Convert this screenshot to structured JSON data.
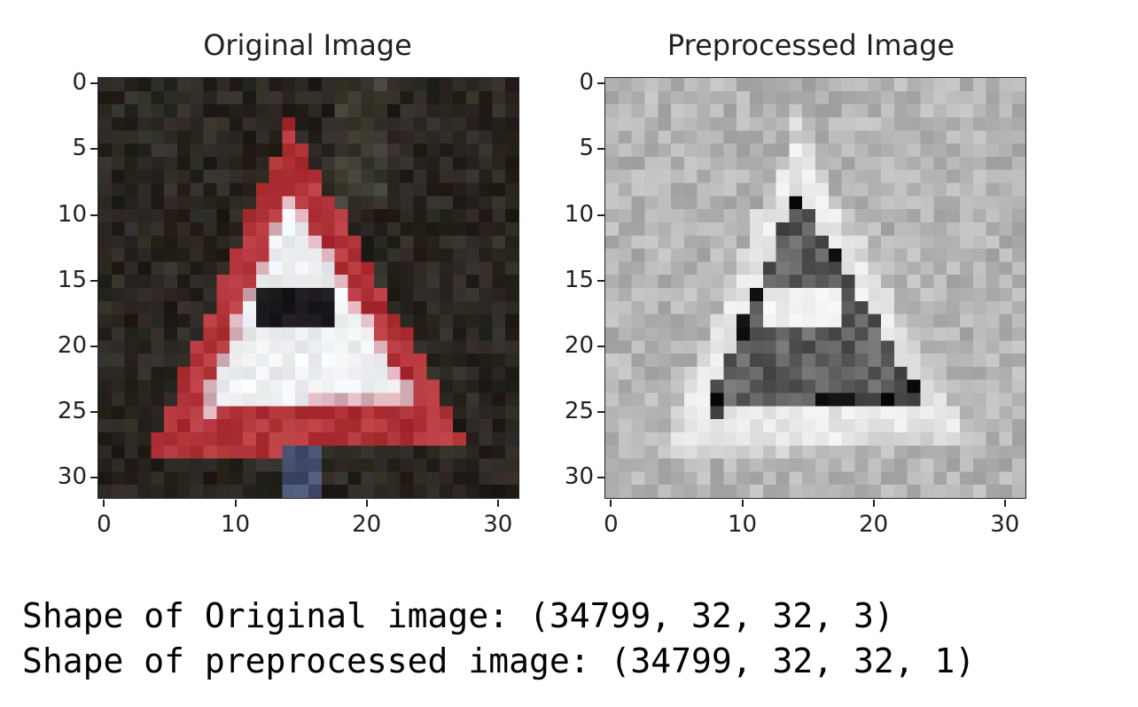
{
  "chart_data": [
    {
      "type": "heatmap",
      "title": "Original Image",
      "image_shape": [
        32,
        32,
        3
      ],
      "x_ticks": [
        0,
        10,
        20,
        30
      ],
      "y_ticks": [
        0,
        5,
        10,
        15,
        20,
        25,
        30
      ],
      "xlim": [
        -0.5,
        31.5
      ],
      "ylim": [
        31.5,
        -0.5
      ],
      "content": "warning-triangle-road-sign",
      "colors": {
        "background": "#2a2620",
        "border_red": "#b2353a",
        "inner_white": "#eef0f2",
        "symbol_dark": "#1c1a1e"
      }
    },
    {
      "type": "heatmap",
      "title": "Preprocessed Image",
      "image_shape": [
        32,
        32,
        1
      ],
      "x_ticks": [
        0,
        10,
        20,
        30
      ],
      "y_ticks": [
        0,
        5,
        10,
        15,
        20,
        25,
        30
      ],
      "xlim": [
        -0.5,
        31.5
      ],
      "ylim": [
        31.5,
        -0.5
      ],
      "colormap": "gray",
      "content": "warning-triangle-road-sign",
      "colors": {
        "background": "#b4b4b4",
        "outline_light": "#f2f2f2",
        "interior_dark": "#555555",
        "edge_black": "#0a0a0a"
      }
    }
  ],
  "output": {
    "line1": "Shape of Original image: (34799, 32, 32, 3)",
    "line2": "Shape of preprocessed image: (34799, 32, 32, 1)"
  }
}
